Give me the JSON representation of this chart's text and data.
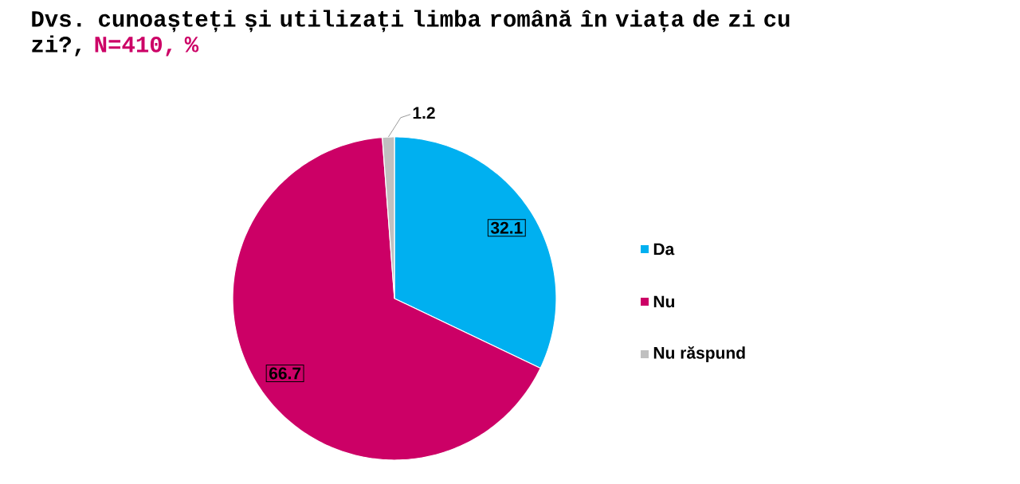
{
  "chart_data": {
    "type": "pie",
    "title": "Dvs. cunoașteți și utilizați limba română în viața de zi cu zi?,",
    "subtitle": "N=410, %",
    "categories": [
      "Da",
      "Nu",
      "Nu răspund"
    ],
    "values": [
      32.1,
      66.7,
      1.2
    ],
    "colors": [
      "#00b0f0",
      "#cc0066",
      "#c0c0c0"
    ],
    "data_labels": true,
    "legend": "right"
  }
}
